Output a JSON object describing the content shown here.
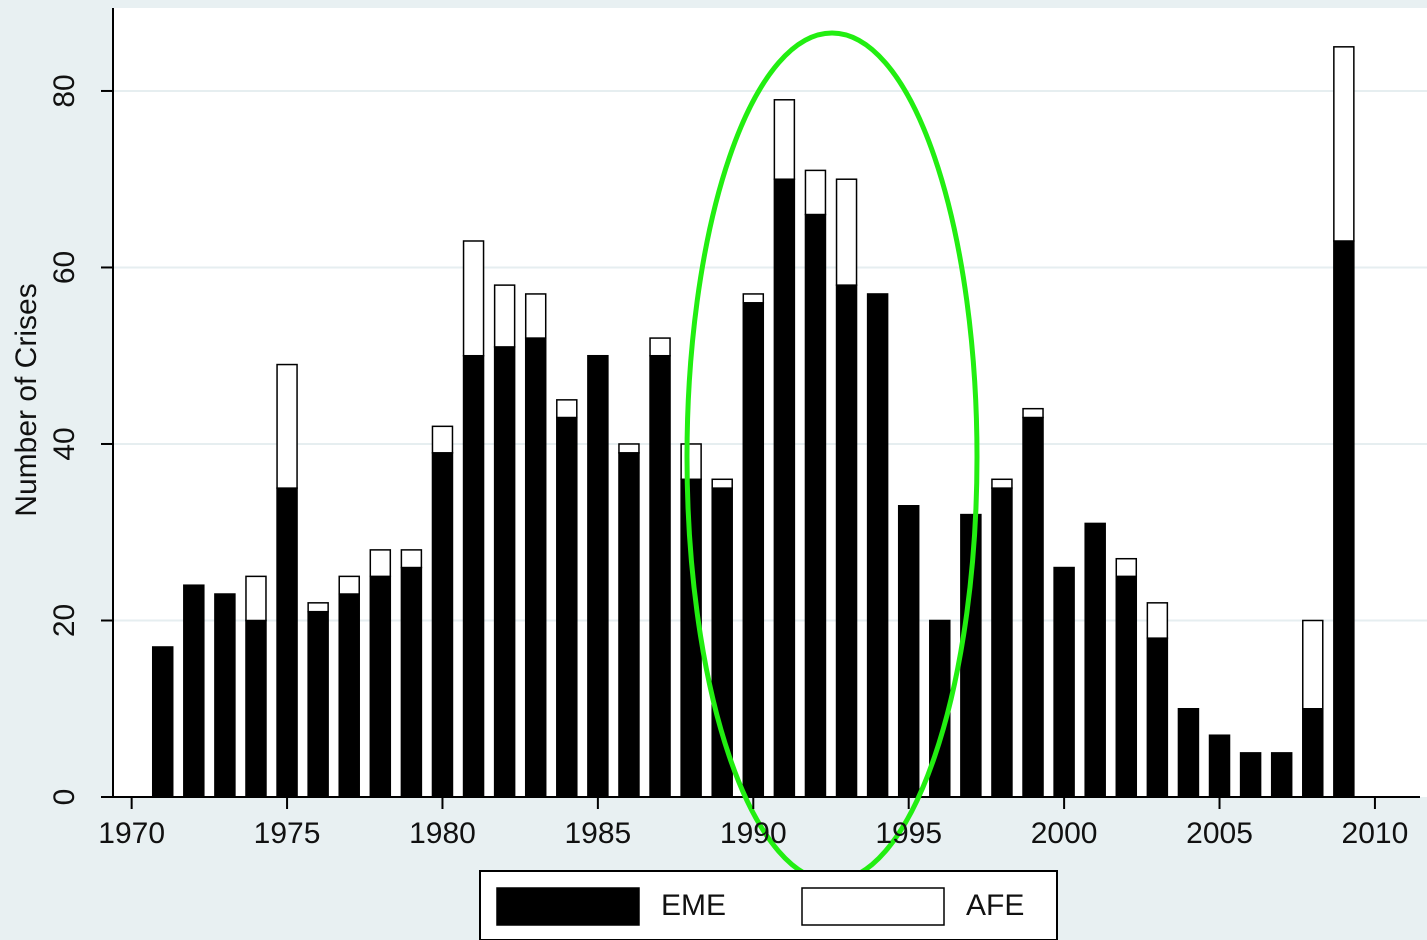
{
  "chart_data": {
    "type": "stacked_bar",
    "y_label": "Number of Crises",
    "x": [
      1971,
      1972,
      1973,
      1974,
      1975,
      1976,
      1977,
      1978,
      1979,
      1980,
      1981,
      1982,
      1983,
      1984,
      1985,
      1986,
      1987,
      1988,
      1989,
      1990,
      1991,
      1992,
      1993,
      1994,
      1995,
      1996,
      1997,
      1998,
      1999,
      2000,
      2001,
      2002,
      2003,
      2004,
      2005,
      2006,
      2007,
      2008,
      2009
    ],
    "series": [
      {
        "name": "EME",
        "color": "#000000",
        "values": [
          17,
          24,
          23,
          20,
          35,
          21,
          23,
          25,
          26,
          39,
          50,
          51,
          52,
          43,
          50,
          39,
          50,
          36,
          35,
          56,
          70,
          66,
          58,
          57,
          33,
          20,
          32,
          35,
          43,
          26,
          31,
          25,
          18,
          10,
          7,
          5,
          5,
          10,
          63
        ]
      },
      {
        "name": "AFE",
        "color": "#ffffff",
        "values": [
          0,
          0,
          0,
          5,
          14,
          1,
          2,
          3,
          2,
          3,
          13,
          7,
          5,
          2,
          0,
          1,
          2,
          4,
          1,
          1,
          9,
          5,
          12,
          0,
          0,
          0,
          0,
          1,
          1,
          0,
          0,
          2,
          4,
          0,
          0,
          0,
          0,
          10,
          22
        ]
      }
    ],
    "xlim": [
      1969.4,
      2011.45
    ],
    "xticks": [
      1970,
      1975,
      1980,
      1985,
      1990,
      1995,
      2000,
      2005,
      2010
    ],
    "ylim": [
      0,
      89.4
    ],
    "yticks": [
      0,
      20,
      40,
      60,
      80
    ],
    "grid": true
  }
}
